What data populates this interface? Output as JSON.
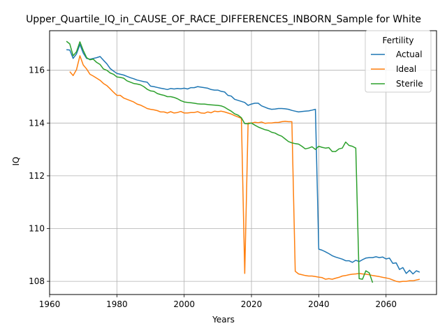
{
  "chart_data": {
    "type": "line",
    "title": "Upper_Quartile_IQ_in_CAUSE_OF_RACE_DIFFERENCES_INBORN_Sample for White",
    "xlabel": "Years",
    "ylabel": "IQ",
    "xlim": [
      1960,
      2075
    ],
    "ylim": [
      107.5,
      117.5
    ],
    "xticks": [
      1960,
      1980,
      2000,
      2020,
      2040,
      2060
    ],
    "yticks": [
      108,
      110,
      112,
      114,
      116
    ],
    "grid": true,
    "legend": {
      "title": "Fertility",
      "position": "top-right"
    },
    "series": [
      {
        "name": "Actual",
        "color": "#1f77b4",
        "points": [
          [
            1965,
            116.78
          ],
          [
            1966,
            116.77
          ],
          [
            1967,
            116.45
          ],
          [
            1968,
            116.62
          ],
          [
            1969,
            116.98
          ],
          [
            1970,
            116.65
          ],
          [
            1971,
            116.45
          ],
          [
            1972,
            116.42
          ],
          [
            1973,
            116.45
          ],
          [
            1974,
            116.48
          ],
          [
            1975,
            116.52
          ],
          [
            1976,
            116.38
          ],
          [
            1977,
            116.25
          ],
          [
            1978,
            116.07
          ],
          [
            1979,
            115.97
          ],
          [
            1980,
            115.88
          ],
          [
            1981,
            115.85
          ],
          [
            1982,
            115.82
          ],
          [
            1983,
            115.77
          ],
          [
            1984,
            115.72
          ],
          [
            1985,
            115.68
          ],
          [
            1986,
            115.63
          ],
          [
            1987,
            115.6
          ],
          [
            1988,
            115.57
          ],
          [
            1989,
            115.55
          ],
          [
            1990,
            115.4
          ],
          [
            1991,
            115.38
          ],
          [
            1992,
            115.35
          ],
          [
            1993,
            115.32
          ],
          [
            1994,
            115.3
          ],
          [
            1995,
            115.27
          ],
          [
            1996,
            115.31
          ],
          [
            1997,
            115.29
          ],
          [
            1998,
            115.31
          ],
          [
            1999,
            115.3
          ],
          [
            2000,
            115.32
          ],
          [
            2001,
            115.29
          ],
          [
            2002,
            115.34
          ],
          [
            2003,
            115.34
          ],
          [
            2004,
            115.38
          ],
          [
            2005,
            115.36
          ],
          [
            2006,
            115.34
          ],
          [
            2007,
            115.32
          ],
          [
            2008,
            115.27
          ],
          [
            2009,
            115.25
          ],
          [
            2010,
            115.25
          ],
          [
            2011,
            115.2
          ],
          [
            2012,
            115.18
          ],
          [
            2013,
            115.05
          ],
          [
            2014,
            115.02
          ],
          [
            2015,
            114.9
          ],
          [
            2016,
            114.86
          ],
          [
            2017,
            114.82
          ],
          [
            2018,
            114.78
          ],
          [
            2019,
            114.67
          ],
          [
            2020,
            114.72
          ],
          [
            2021,
            114.75
          ],
          [
            2022,
            114.75
          ],
          [
            2023,
            114.65
          ],
          [
            2024,
            114.6
          ],
          [
            2025,
            114.55
          ],
          [
            2026,
            114.52
          ],
          [
            2027,
            114.53
          ],
          [
            2028,
            114.55
          ],
          [
            2029,
            114.55
          ],
          [
            2030,
            114.54
          ],
          [
            2031,
            114.52
          ],
          [
            2032,
            114.48
          ],
          [
            2033,
            114.45
          ],
          [
            2034,
            114.42
          ],
          [
            2035,
            114.44
          ],
          [
            2036,
            114.45
          ],
          [
            2037,
            114.46
          ],
          [
            2038,
            114.49
          ],
          [
            2039,
            114.52
          ],
          [
            2040,
            109.22
          ],
          [
            2041,
            109.18
          ],
          [
            2042,
            109.12
          ],
          [
            2043,
            109.05
          ],
          [
            2044,
            108.97
          ],
          [
            2045,
            108.92
          ],
          [
            2046,
            108.88
          ],
          [
            2047,
            108.84
          ],
          [
            2048,
            108.78
          ],
          [
            2049,
            108.78
          ],
          [
            2050,
            108.72
          ],
          [
            2051,
            108.8
          ],
          [
            2052,
            108.75
          ],
          [
            2053,
            108.82
          ],
          [
            2054,
            108.88
          ],
          [
            2055,
            108.9
          ],
          [
            2056,
            108.9
          ],
          [
            2057,
            108.93
          ],
          [
            2058,
            108.9
          ],
          [
            2059,
            108.92
          ],
          [
            2060,
            108.85
          ],
          [
            2061,
            108.88
          ],
          [
            2062,
            108.68
          ],
          [
            2063,
            108.7
          ],
          [
            2064,
            108.45
          ],
          [
            2065,
            108.52
          ],
          [
            2066,
            108.3
          ],
          [
            2067,
            108.42
          ],
          [
            2068,
            108.28
          ],
          [
            2069,
            108.4
          ],
          [
            2070,
            108.35
          ]
        ]
      },
      {
        "name": "Ideal",
        "color": "#ff7f0e",
        "points": [
          [
            1966,
            115.95
          ],
          [
            1967,
            115.8
          ],
          [
            1968,
            116.02
          ],
          [
            1969,
            116.55
          ],
          [
            1970,
            116.2
          ],
          [
            1971,
            116.05
          ],
          [
            1972,
            115.85
          ],
          [
            1973,
            115.78
          ],
          [
            1974,
            115.7
          ],
          [
            1975,
            115.62
          ],
          [
            1976,
            115.5
          ],
          [
            1977,
            115.42
          ],
          [
            1978,
            115.3
          ],
          [
            1979,
            115.17
          ],
          [
            1980,
            115.05
          ],
          [
            1981,
            115.05
          ],
          [
            1982,
            114.95
          ],
          [
            1983,
            114.9
          ],
          [
            1984,
            114.85
          ],
          [
            1985,
            114.8
          ],
          [
            1986,
            114.72
          ],
          [
            1987,
            114.68
          ],
          [
            1988,
            114.62
          ],
          [
            1989,
            114.55
          ],
          [
            1990,
            114.52
          ],
          [
            1991,
            114.5
          ],
          [
            1992,
            114.47
          ],
          [
            1993,
            114.42
          ],
          [
            1994,
            114.42
          ],
          [
            1995,
            114.38
          ],
          [
            1996,
            114.43
          ],
          [
            1997,
            114.38
          ],
          [
            1998,
            114.4
          ],
          [
            1999,
            114.44
          ],
          [
            2000,
            114.38
          ],
          [
            2001,
            114.38
          ],
          [
            2002,
            114.4
          ],
          [
            2003,
            114.4
          ],
          [
            2004,
            114.43
          ],
          [
            2005,
            114.38
          ],
          [
            2006,
            114.37
          ],
          [
            2007,
            114.42
          ],
          [
            2008,
            114.39
          ],
          [
            2009,
            114.45
          ],
          [
            2010,
            114.43
          ],
          [
            2011,
            114.45
          ],
          [
            2012,
            114.42
          ],
          [
            2013,
            114.38
          ],
          [
            2014,
            114.34
          ],
          [
            2015,
            114.28
          ],
          [
            2016,
            114.23
          ],
          [
            2017,
            114.18
          ],
          [
            2018,
            108.3
          ],
          [
            2019,
            114.0
          ],
          [
            2020,
            114.0
          ],
          [
            2021,
            114.03
          ],
          [
            2022,
            114.01
          ],
          [
            2023,
            114.04
          ],
          [
            2024,
            113.99
          ],
          [
            2025,
            114.0
          ],
          [
            2026,
            114.0
          ],
          [
            2027,
            114.02
          ],
          [
            2028,
            114.02
          ],
          [
            2029,
            114.05
          ],
          [
            2030,
            114.07
          ],
          [
            2031,
            114.05
          ],
          [
            2032,
            114.05
          ],
          [
            2033,
            108.38
          ],
          [
            2034,
            108.28
          ],
          [
            2035,
            108.25
          ],
          [
            2036,
            108.22
          ],
          [
            2037,
            108.2
          ],
          [
            2038,
            108.2
          ],
          [
            2039,
            108.18
          ],
          [
            2040,
            108.16
          ],
          [
            2041,
            108.14
          ],
          [
            2042,
            108.08
          ],
          [
            2043,
            108.1
          ],
          [
            2044,
            108.08
          ],
          [
            2045,
            108.12
          ],
          [
            2046,
            108.15
          ],
          [
            2047,
            108.2
          ],
          [
            2048,
            108.22
          ],
          [
            2049,
            108.25
          ],
          [
            2050,
            108.27
          ],
          [
            2051,
            108.28
          ],
          [
            2052,
            108.3
          ],
          [
            2053,
            108.28
          ],
          [
            2054,
            108.27
          ],
          [
            2055,
            108.25
          ],
          [
            2056,
            108.22
          ],
          [
            2057,
            108.2
          ],
          [
            2058,
            108.18
          ],
          [
            2059,
            108.15
          ],
          [
            2060,
            108.13
          ],
          [
            2061,
            108.1
          ],
          [
            2062,
            108.05
          ],
          [
            2063,
            108.0
          ],
          [
            2064,
            107.98
          ],
          [
            2065,
            108.0
          ],
          [
            2066,
            108.0
          ],
          [
            2067,
            108.02
          ],
          [
            2068,
            108.02
          ],
          [
            2069,
            108.05
          ],
          [
            2070,
            108.08
          ]
        ]
      },
      {
        "name": "Sterile",
        "color": "#2ca02c",
        "points": [
          [
            1965,
            117.1
          ],
          [
            1966,
            117.0
          ],
          [
            1967,
            116.55
          ],
          [
            1968,
            116.7
          ],
          [
            1969,
            117.08
          ],
          [
            1970,
            116.75
          ],
          [
            1971,
            116.48
          ],
          [
            1972,
            116.4
          ],
          [
            1973,
            116.42
          ],
          [
            1974,
            116.3
          ],
          [
            1975,
            116.22
          ],
          [
            1976,
            116.05
          ],
          [
            1977,
            116.0
          ],
          [
            1978,
            115.9
          ],
          [
            1979,
            115.85
          ],
          [
            1980,
            115.75
          ],
          [
            1981,
            115.73
          ],
          [
            1982,
            115.7
          ],
          [
            1983,
            115.6
          ],
          [
            1984,
            115.55
          ],
          [
            1985,
            115.5
          ],
          [
            1986,
            115.48
          ],
          [
            1987,
            115.45
          ],
          [
            1988,
            115.38
          ],
          [
            1989,
            115.28
          ],
          [
            1990,
            115.22
          ],
          [
            1991,
            115.2
          ],
          [
            1992,
            115.12
          ],
          [
            1993,
            115.08
          ],
          [
            1994,
            115.05
          ],
          [
            1995,
            115.0
          ],
          [
            1996,
            115.0
          ],
          [
            1997,
            114.97
          ],
          [
            1998,
            114.92
          ],
          [
            1999,
            114.85
          ],
          [
            2000,
            114.8
          ],
          [
            2001,
            114.78
          ],
          [
            2002,
            114.77
          ],
          [
            2003,
            114.75
          ],
          [
            2004,
            114.73
          ],
          [
            2005,
            114.72
          ],
          [
            2006,
            114.72
          ],
          [
            2007,
            114.7
          ],
          [
            2008,
            114.69
          ],
          [
            2009,
            114.68
          ],
          [
            2010,
            114.67
          ],
          [
            2011,
            114.65
          ],
          [
            2012,
            114.6
          ],
          [
            2013,
            114.52
          ],
          [
            2014,
            114.45
          ],
          [
            2015,
            114.35
          ],
          [
            2016,
            114.3
          ],
          [
            2017,
            114.2
          ],
          [
            2018,
            113.98
          ],
          [
            2019,
            113.97
          ],
          [
            2020,
            114.0
          ],
          [
            2021,
            113.92
          ],
          [
            2022,
            113.85
          ],
          [
            2023,
            113.8
          ],
          [
            2024,
            113.75
          ],
          [
            2025,
            113.72
          ],
          [
            2026,
            113.65
          ],
          [
            2027,
            113.62
          ],
          [
            2028,
            113.55
          ],
          [
            2029,
            113.5
          ],
          [
            2030,
            113.4
          ],
          [
            2031,
            113.3
          ],
          [
            2032,
            113.25
          ],
          [
            2033,
            113.22
          ],
          [
            2034,
            113.2
          ],
          [
            2035,
            113.12
          ],
          [
            2036,
            113.02
          ],
          [
            2037,
            113.05
          ],
          [
            2038,
            113.1
          ],
          [
            2039,
            113.0
          ],
          [
            2040,
            113.12
          ],
          [
            2041,
            113.08
          ],
          [
            2042,
            113.05
          ],
          [
            2043,
            113.07
          ],
          [
            2044,
            112.92
          ],
          [
            2045,
            112.92
          ],
          [
            2046,
            113.02
          ],
          [
            2047,
            113.05
          ],
          [
            2048,
            113.28
          ],
          [
            2049,
            113.15
          ],
          [
            2050,
            113.12
          ],
          [
            2051,
            113.05
          ],
          [
            2052,
            108.1
          ],
          [
            2053,
            108.08
          ],
          [
            2054,
            108.4
          ],
          [
            2055,
            108.32
          ],
          [
            2056,
            107.95
          ]
        ]
      }
    ]
  }
}
